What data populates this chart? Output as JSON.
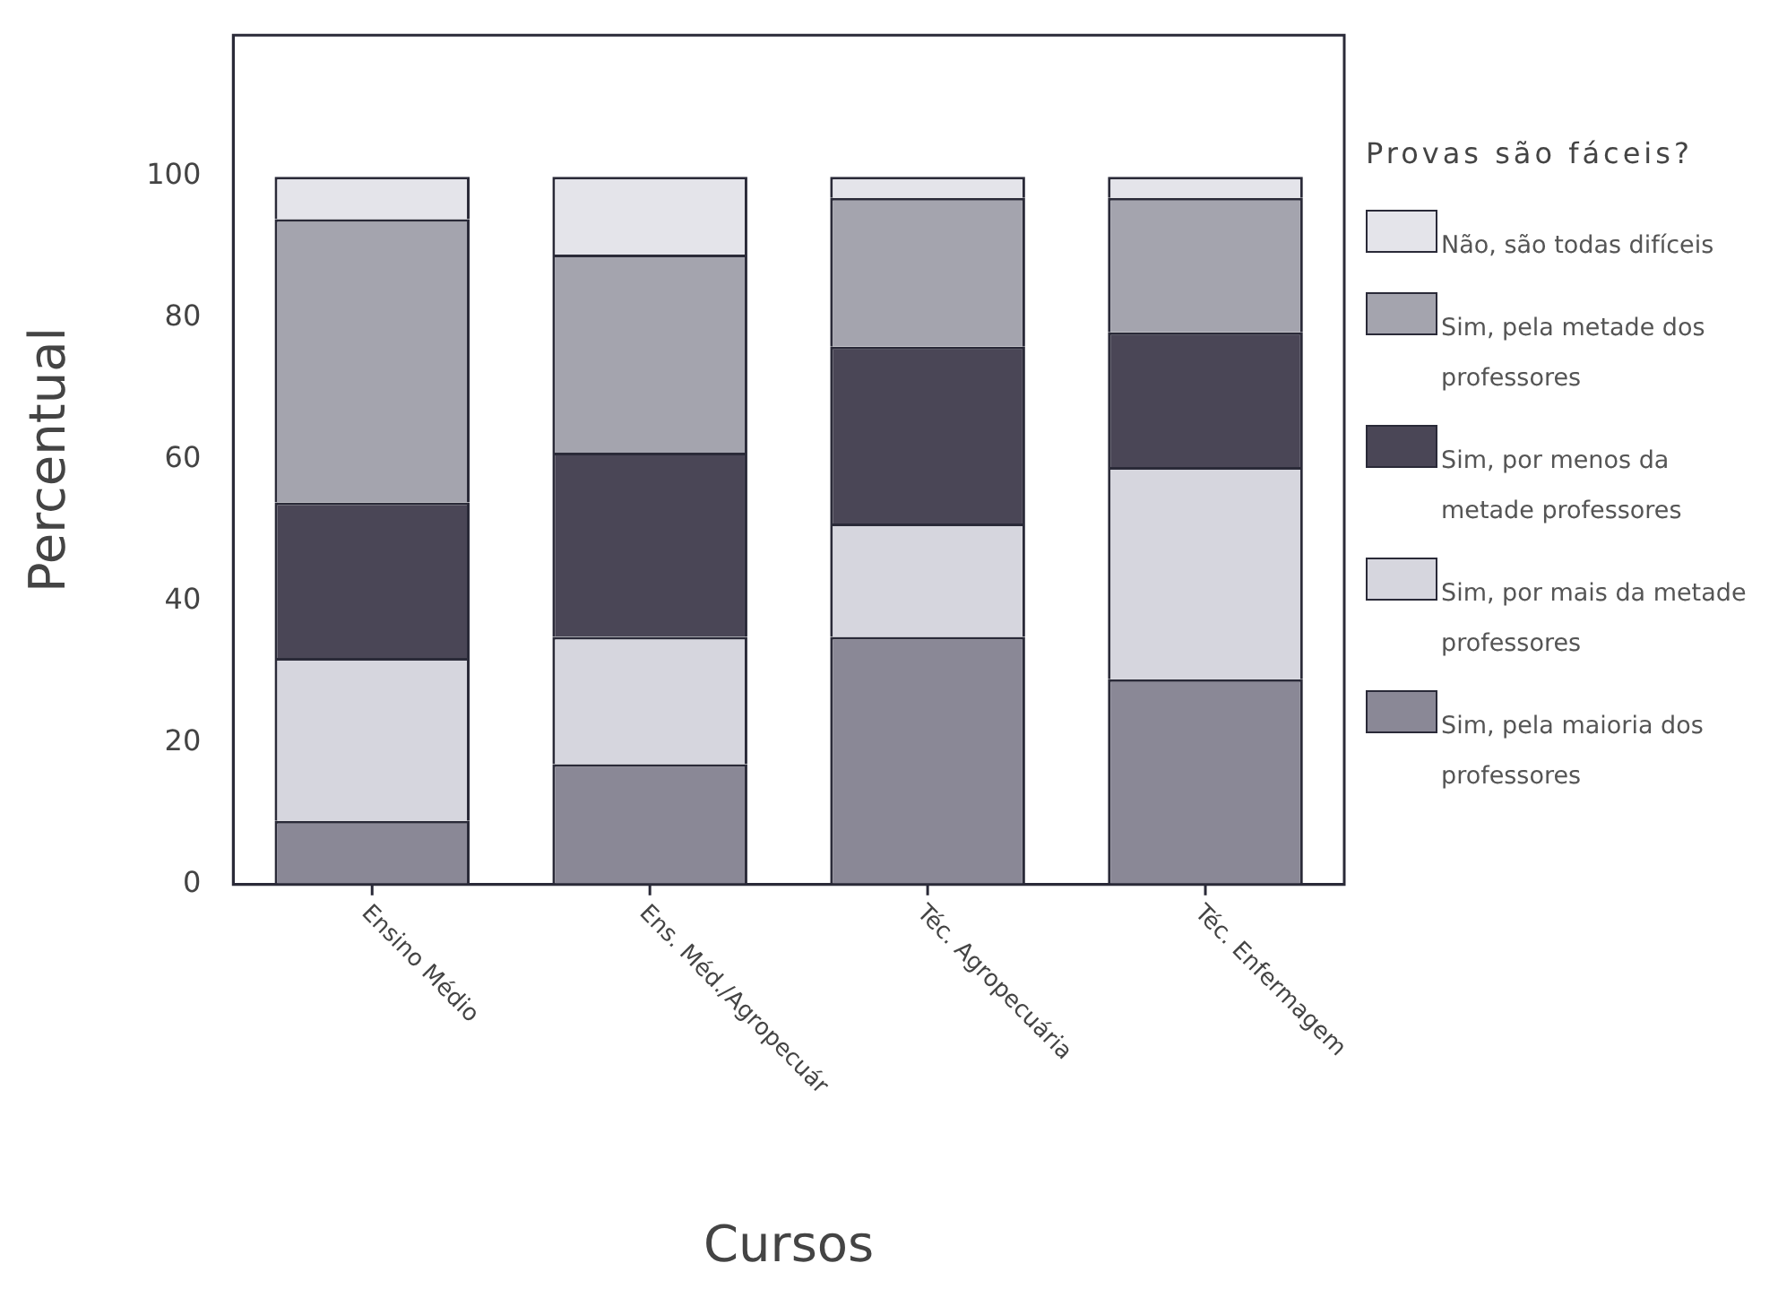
{
  "chart_data": {
    "type": "bar",
    "stacked": true,
    "xlabel": "Cursos",
    "ylabel": "Percentual",
    "legend_title": "Provas são fáceis?",
    "legend": "right",
    "categories": [
      "Ensino Médio",
      "Ens. Méd./Agropecuár",
      "Téc. Agropecuária",
      "Téc. Enfermagem"
    ],
    "ylim": [
      0,
      120
    ],
    "yticks": [
      0,
      20,
      40,
      60,
      80,
      100
    ],
    "grid": false,
    "series": [
      {
        "name": "Sim, pela maioria dos professores",
        "color": "#8a8896",
        "values": [
          9,
          17,
          35,
          29
        ]
      },
      {
        "name": "Sim, por mais da metade professores",
        "color": "#d6d6de",
        "values": [
          23,
          18,
          16,
          30
        ]
      },
      {
        "name": "Sim, por menos da metade professores",
        "color": "#4a4656",
        "values": [
          22,
          26,
          25,
          19
        ]
      },
      {
        "name": "Sim, pela metade dos professores",
        "color": "#a4a4ae",
        "values": [
          40,
          28,
          21,
          19
        ]
      },
      {
        "name": "Não, são todas difíceis",
        "color": "#e4e4ea",
        "values": [
          6,
          11,
          3,
          3
        ]
      }
    ]
  }
}
